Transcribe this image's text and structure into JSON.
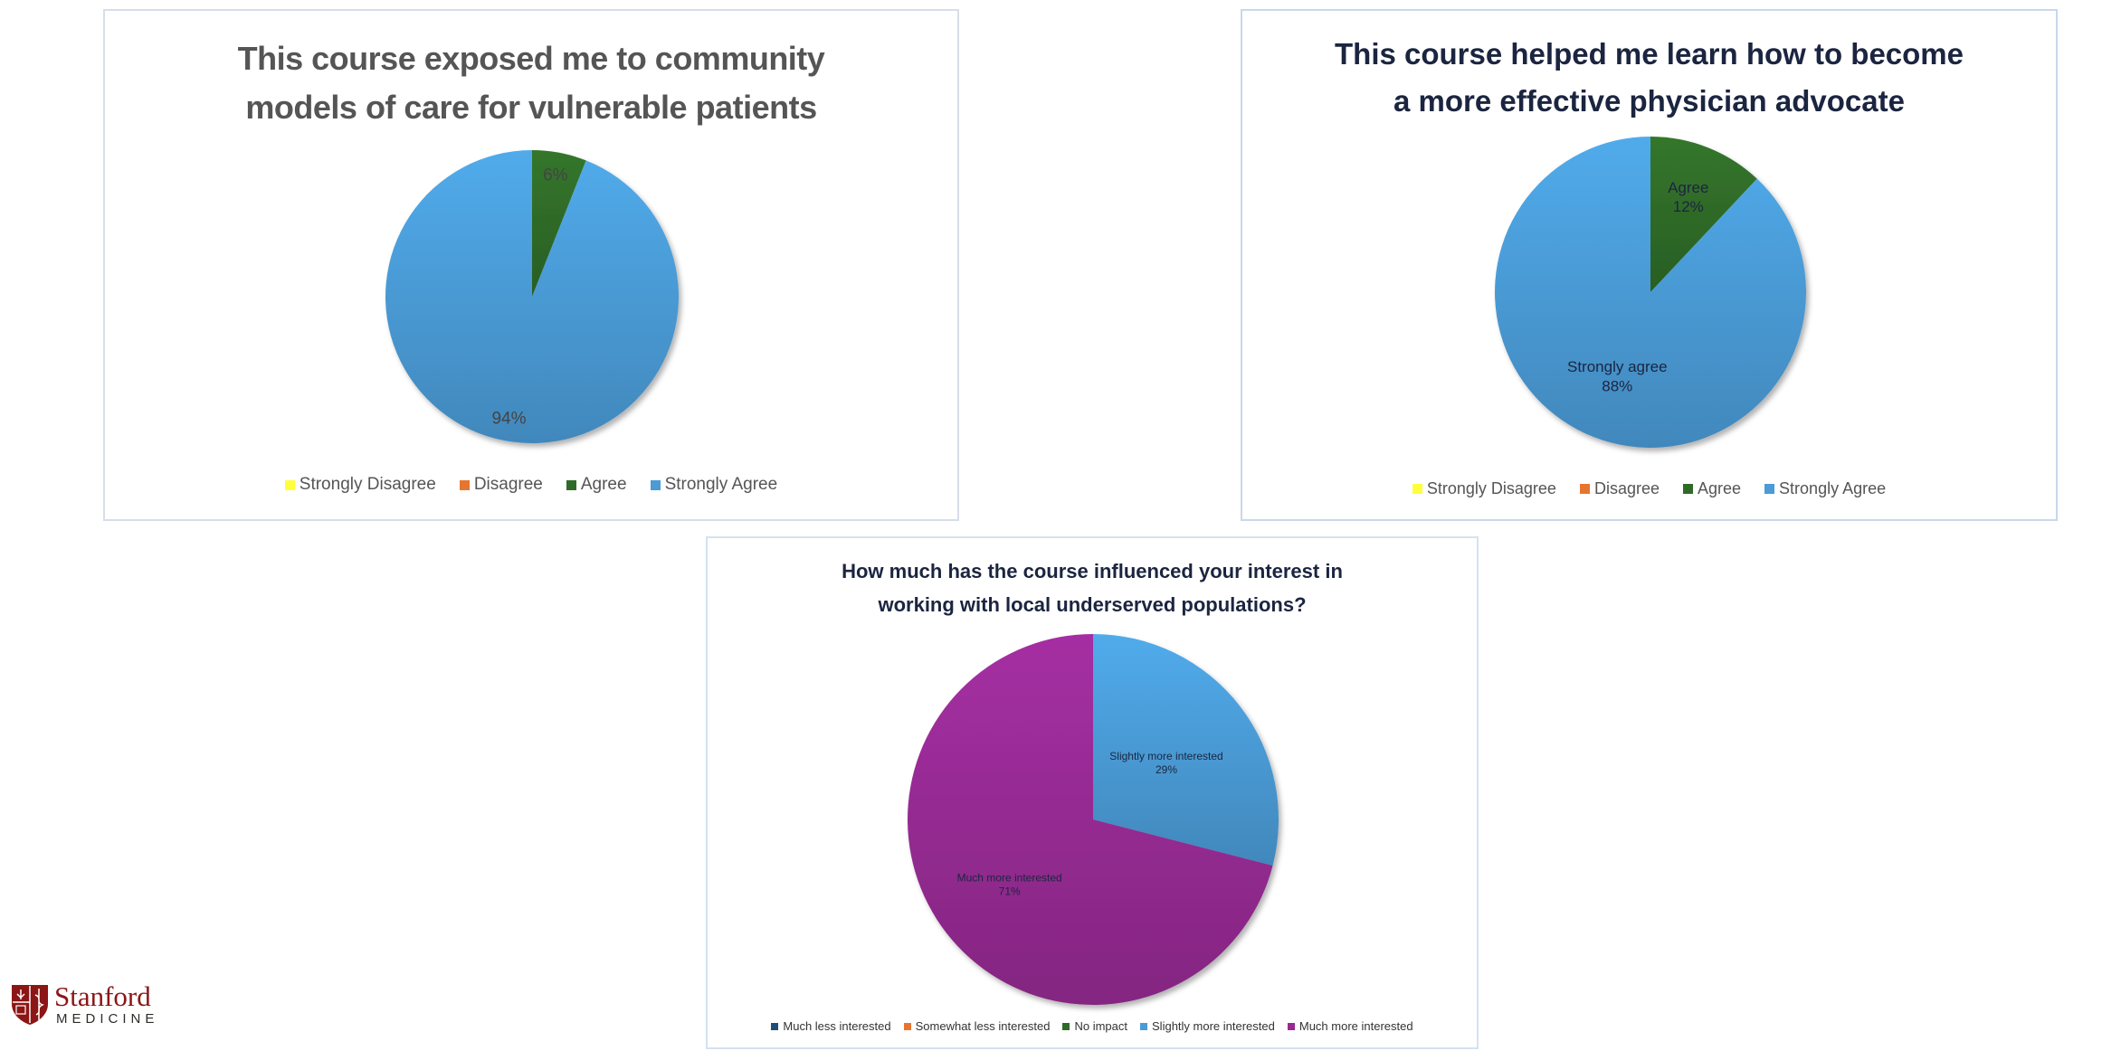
{
  "logo": {
    "word": "Stanford",
    "sub": "MEDICINE"
  },
  "chart_data": [
    {
      "type": "pie",
      "title": [
        "This course exposed me to community",
        "models of care for vulnerable patients"
      ],
      "categories": [
        "Strongly Disagree",
        "Disagree",
        "Agree",
        "Strongly Agree"
      ],
      "values": [
        0,
        0,
        6,
        94
      ],
      "labels": [
        "",
        "",
        "6%",
        "94%"
      ],
      "colors": [
        "#ffff3c",
        "#e6762f",
        "#2f6b28",
        "#4a9bd6"
      ],
      "legend": "bottom"
    },
    {
      "type": "pie",
      "title": [
        "This course helped me learn how to become",
        "a more effective physician advocate"
      ],
      "categories": [
        "Strongly Disagree",
        "Disagree",
        "Agree",
        "Strongly Agree"
      ],
      "values": [
        0,
        0,
        12,
        88
      ],
      "labels": [
        "",
        "",
        "Agree\n12%",
        "Strongly agree\n88%"
      ],
      "colors": [
        "#ffff3c",
        "#e6762f",
        "#2f6b28",
        "#4a9bd6"
      ],
      "legend": "bottom"
    },
    {
      "type": "pie",
      "title": [
        "How much has the course influenced your interest in",
        "working with local underserved populations?"
      ],
      "categories": [
        "Much less interested",
        "Somewhat less interested",
        "No impact",
        "Slightly more interested",
        "Much more interested"
      ],
      "values": [
        0,
        0,
        0,
        29,
        71
      ],
      "labels": [
        "",
        "",
        "",
        "Slightly more interested\n29%",
        "Much more interested\n71%"
      ],
      "colors": [
        "#1f4e79",
        "#e6762f",
        "#2f6b28",
        "#4a9bd6",
        "#962b93"
      ],
      "legend": "bottom"
    }
  ]
}
